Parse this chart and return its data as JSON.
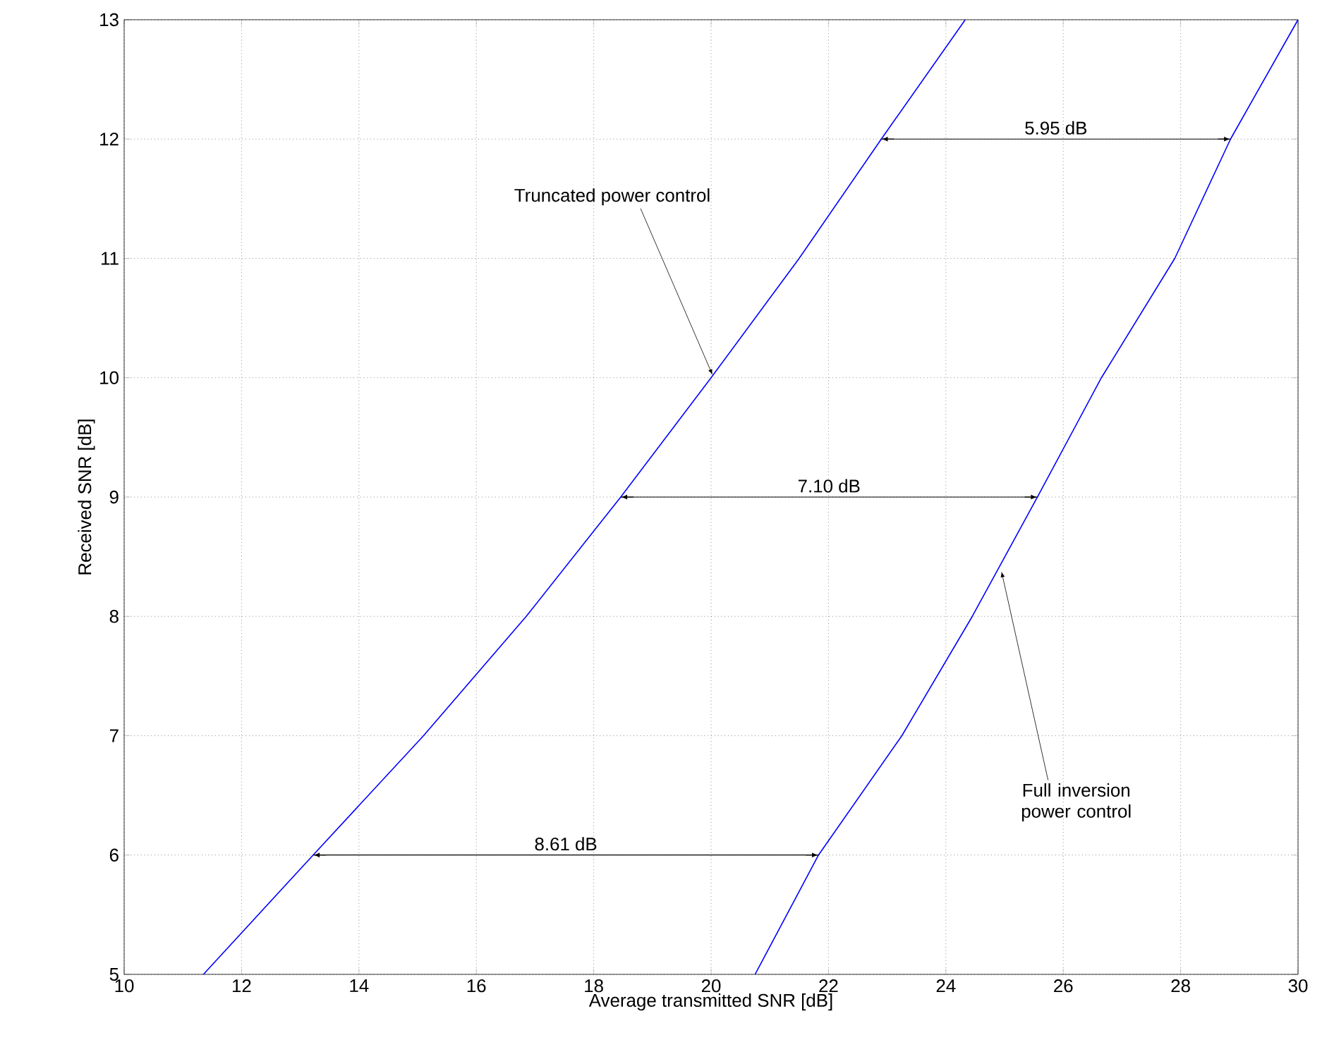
{
  "chart_data": {
    "type": "line",
    "xlabel": "Average transmitted SNR [dB]",
    "ylabel": "Received SNR [dB]",
    "xlim": [
      10,
      30
    ],
    "ylim": [
      5,
      13
    ],
    "xticks": [
      10,
      12,
      14,
      16,
      18,
      20,
      22,
      24,
      26,
      28,
      30
    ],
    "yticks": [
      5,
      6,
      7,
      8,
      9,
      10,
      11,
      12,
      13
    ],
    "grid": true,
    "marker": "none",
    "line_style": "solid",
    "series": [
      {
        "color": "#0000ff",
        "x": [
          11.35,
          13.22,
          15.1,
          16.85,
          18.46,
          20.0,
          21.5,
          22.9,
          24.33
        ],
        "values": [
          5,
          6,
          7,
          8,
          9,
          10,
          11,
          12,
          13
        ]
      },
      {
        "color": "#0000ff",
        "x": [
          20.75,
          21.83,
          23.25,
          24.45,
          25.56,
          26.65,
          27.9,
          28.85,
          30.0
        ],
        "values": [
          5,
          6,
          7,
          8,
          9,
          10,
          11,
          12,
          13
        ]
      },
      {
        "type": "line",
        "color": "#000000",
        "x": [
          22.9,
          28.85
        ],
        "values": [
          12,
          12
        ]
      },
      {
        "type": "line",
        "color": "#000000",
        "x": [
          18.46,
          25.56
        ],
        "values": [
          9,
          9
        ]
      },
      {
        "type": "line",
        "color": "#000000",
        "x": [
          13.22,
          21.83
        ],
        "values": [
          6,
          6
        ]
      }
    ],
    "annotations": [
      {
        "text": "Truncated power control",
        "x": 20.0,
        "y": 10
      },
      {
        "text": "Full inversion power control",
        "x": 24.9,
        "y": 8.4
      },
      "5.95 dB",
      "7.10 dB",
      "8.61 dB"
    ]
  }
}
